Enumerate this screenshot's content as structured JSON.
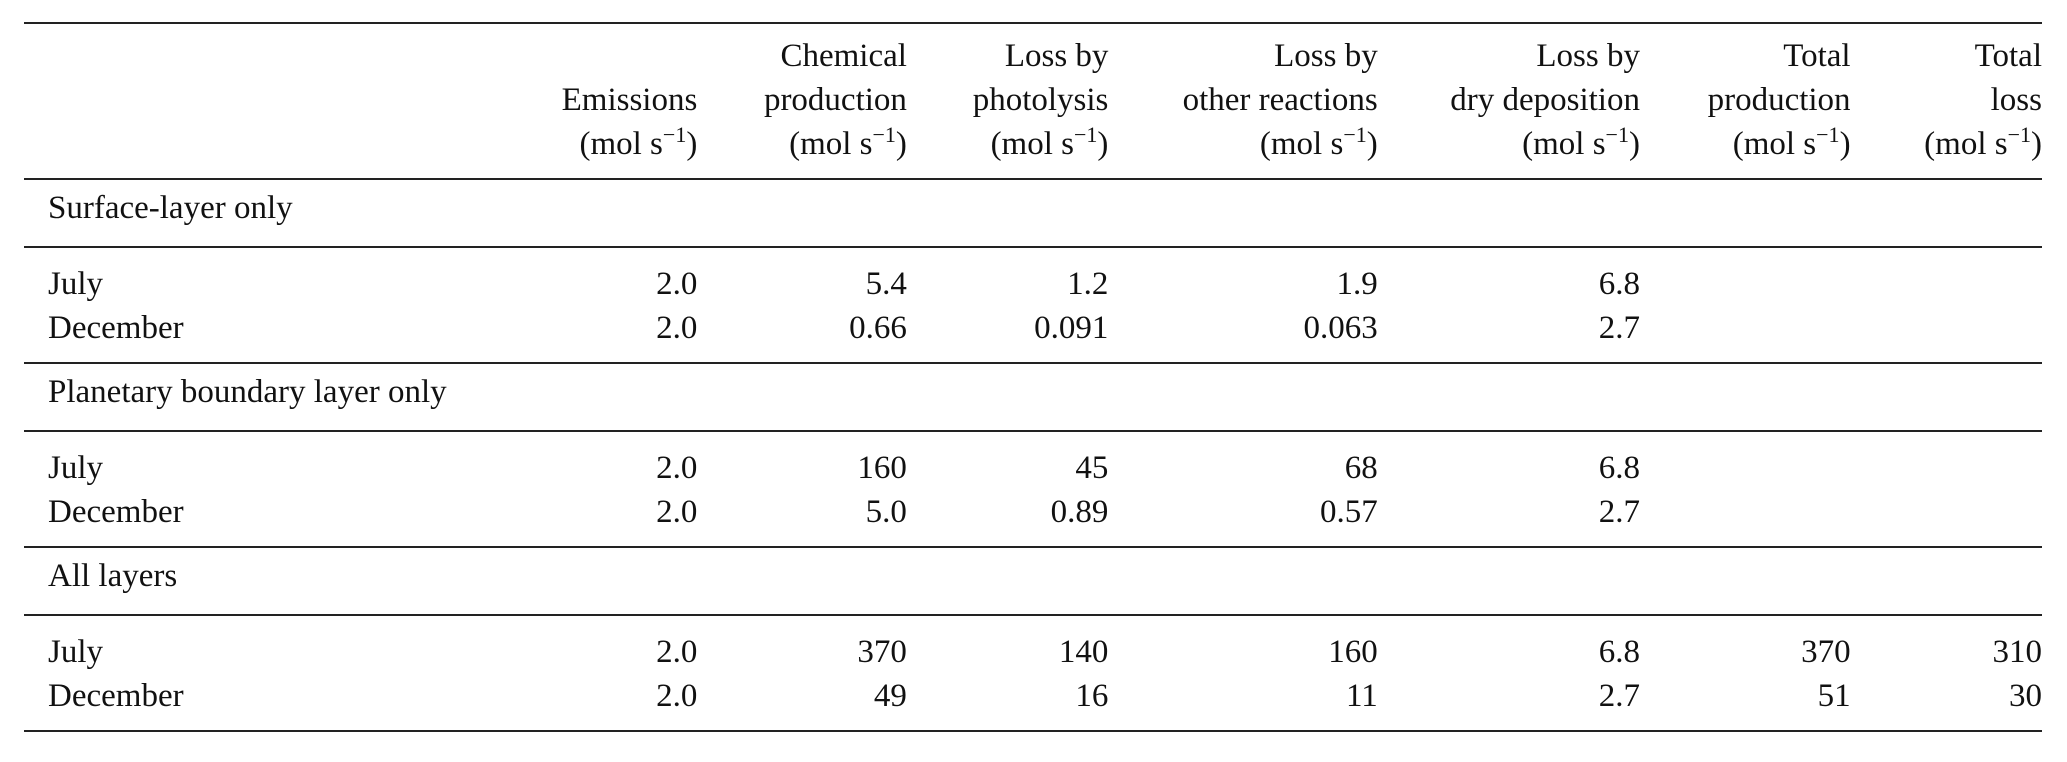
{
  "headers": [
    {
      "lines": [
        "",
        "Emissions",
        "(mol s⁻¹)"
      ]
    },
    {
      "lines": [
        "",
        "Chemical",
        "production",
        "(mol s⁻¹)"
      ]
    },
    {
      "lines": [
        "",
        "Loss by",
        "photolysis",
        "(mol s⁻¹)"
      ]
    },
    {
      "lines": [
        "",
        "Loss by",
        "other reactions",
        "(mol s⁻¹)"
      ]
    },
    {
      "lines": [
        "",
        "Loss by",
        "dry deposition",
        "(mol s⁻¹)"
      ]
    },
    {
      "lines": [
        "",
        "Total",
        "production",
        "(mol s⁻¹)"
      ]
    },
    {
      "lines": [
        "",
        "Total",
        "loss",
        "(mol s⁻¹)"
      ]
    }
  ],
  "sections": [
    {
      "title": "Surface-layer only",
      "rows": [
        {
          "label": "July",
          "values": [
            "2.0",
            "5.4",
            "1.2",
            "1.9",
            "6.8",
            "",
            ""
          ]
        },
        {
          "label": "December",
          "values": [
            "2.0",
            "0.66",
            "0.091",
            "0.063",
            "2.7",
            "",
            ""
          ]
        }
      ]
    },
    {
      "title": "Planetary boundary layer only",
      "rows": [
        {
          "label": "July",
          "values": [
            "2.0",
            "160",
            "45",
            "68",
            "6.8",
            "",
            ""
          ]
        },
        {
          "label": "December",
          "values": [
            "2.0",
            "5.0",
            "0.89",
            "0.57",
            "2.7",
            "",
            ""
          ]
        }
      ]
    },
    {
      "title": "All layers",
      "rows": [
        {
          "label": "July",
          "values": [
            "2.0",
            "370",
            "140",
            "160",
            "6.8",
            "370",
            "310"
          ]
        },
        {
          "label": "December",
          "values": [
            "2.0",
            "49",
            "16",
            "11",
            "2.7",
            "51",
            "30"
          ]
        }
      ]
    }
  ]
}
